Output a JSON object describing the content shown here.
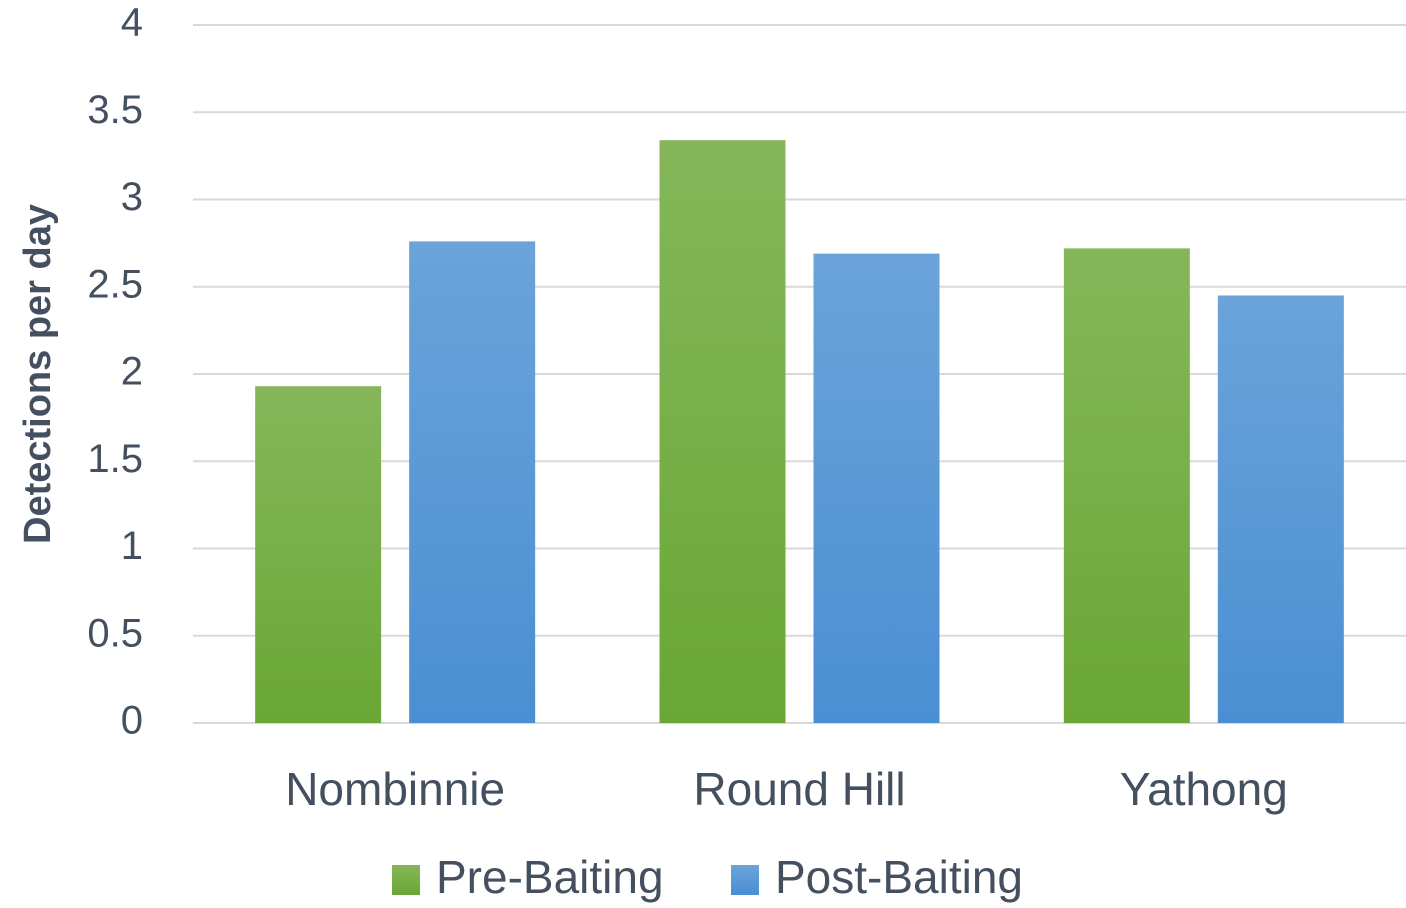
{
  "chart_data": {
    "type": "bar",
    "y_label": "Detections per day",
    "categories": [
      "Nombinnie",
      "Round Hill",
      "Yathong"
    ],
    "series": [
      {
        "name": "Pre-Baiting",
        "color": "#6aa736",
        "values": [
          1.93,
          3.34,
          2.72
        ]
      },
      {
        "name": "Post-Baiting",
        "color": "#4a8fd2",
        "values": [
          2.76,
          2.69,
          2.45
        ]
      }
    ],
    "ylim": [
      0,
      4
    ],
    "yticks": [
      0,
      0.5,
      1,
      1.5,
      2,
      2.5,
      3,
      3.5,
      4
    ],
    "grid": true,
    "legend": "bottom"
  }
}
